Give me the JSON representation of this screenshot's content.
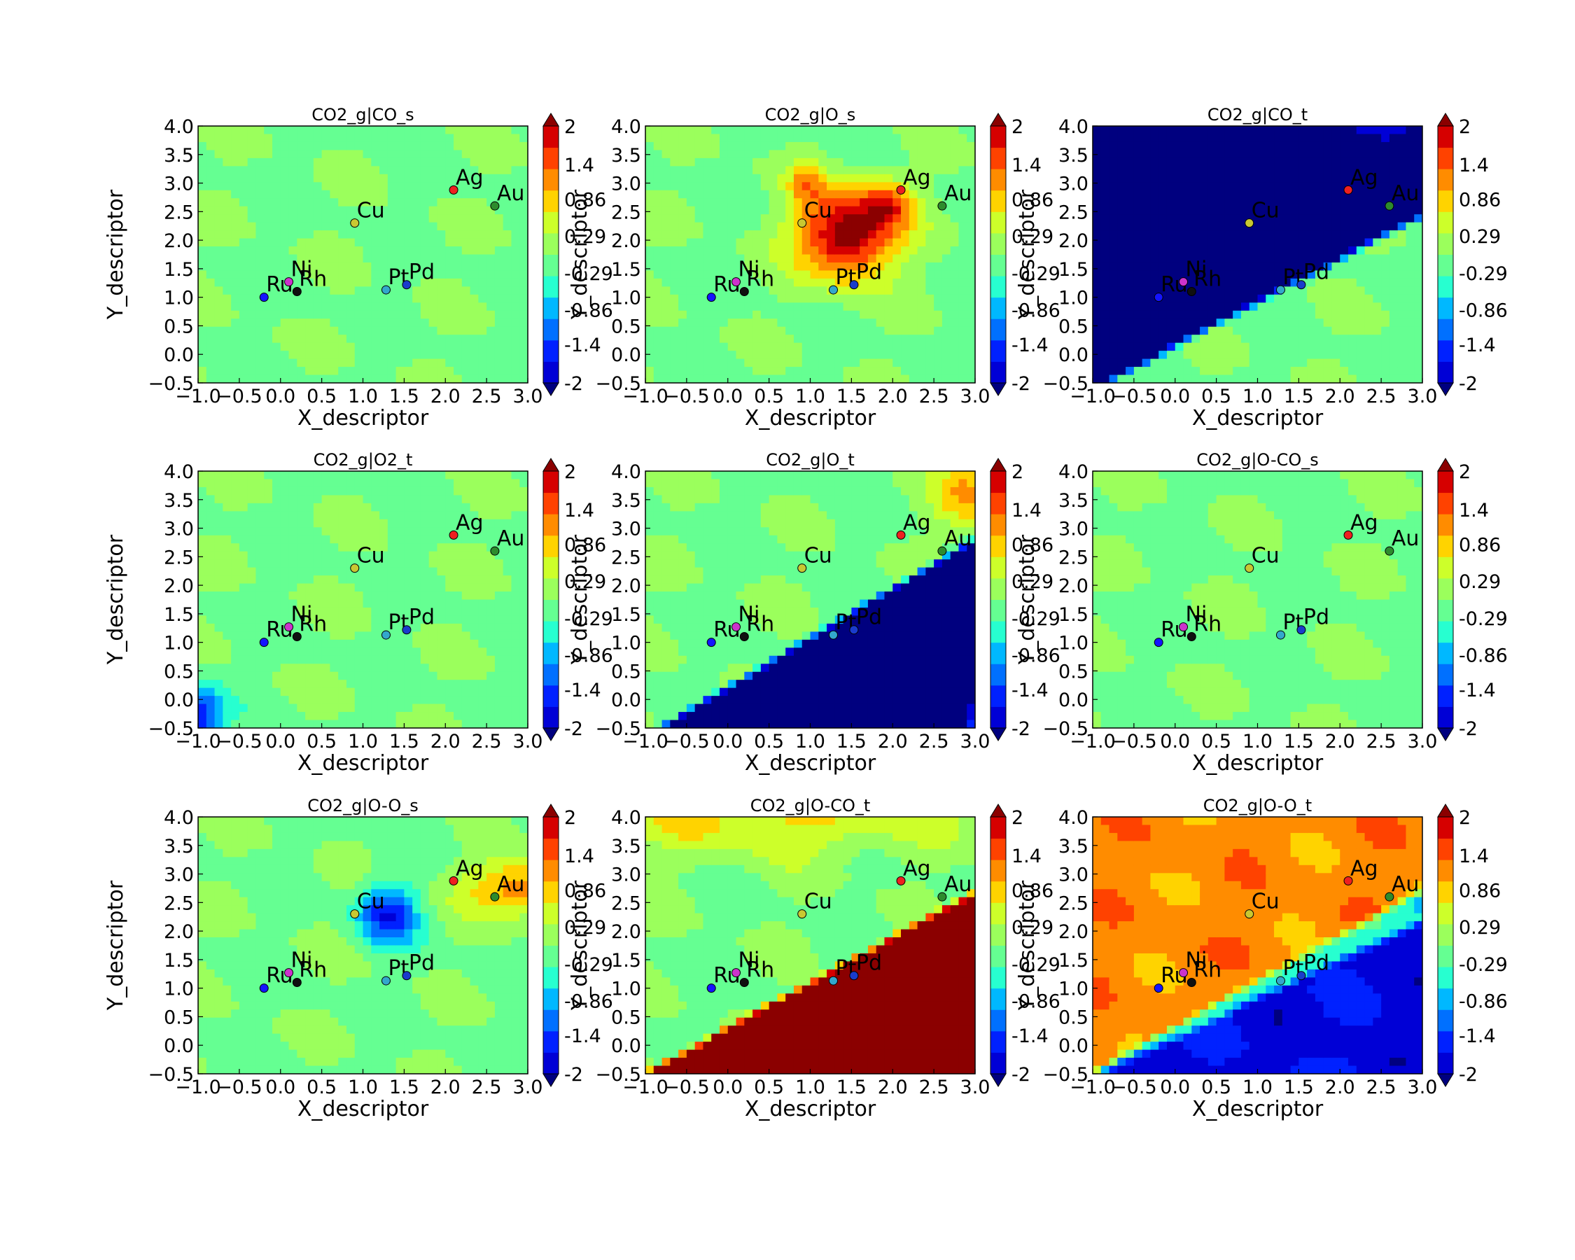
{
  "chart_data": {
    "type": "contour",
    "layout": {
      "rows": 3,
      "cols": 3
    },
    "xlabel": "X_descriptor",
    "ylabel": "Y_descriptor",
    "colorbar_label": "Y_descriptor",
    "xlim": [
      -1.0,
      3.0
    ],
    "ylim": [
      -0.5,
      4.0
    ],
    "xticks": [
      "−1.0",
      "−0.5",
      "0.0",
      "0.5",
      "1.0",
      "1.5",
      "2.0",
      "2.5",
      "3.0"
    ],
    "yticks": [
      "−0.5",
      "0.0",
      "0.5",
      "1.0",
      "1.5",
      "2.0",
      "2.5",
      "3.0",
      "3.5",
      "4.0"
    ],
    "colorbar": {
      "extend": "both",
      "range": [
        -2,
        2
      ],
      "ticks": [
        "-2",
        "-1.4",
        "-0.86",
        "-0.29",
        "0.29",
        "0.86",
        "1.4",
        "2"
      ],
      "levels": [
        -2.0,
        -1.714,
        -1.429,
        -1.143,
        -0.857,
        -0.571,
        -0.286,
        0.0,
        0.286,
        0.571,
        0.857,
        1.143,
        1.429,
        1.714,
        2.0
      ],
      "colors": [
        "#00007f",
        "#0000d6",
        "#0021ff",
        "#0070ff",
        "#00b8ff",
        "#27ffd0",
        "#65ff92",
        "#9bff5c",
        "#cdff2a",
        "#ffd300",
        "#ff8c00",
        "#ff4200",
        "#d60000",
        "#8b0000"
      ]
    },
    "metals": [
      {
        "name": "Ru",
        "x": -0.2,
        "y": 1.0,
        "color": "#1414ff"
      },
      {
        "name": "Ni",
        "x": 0.1,
        "y": 1.27,
        "color": "#cc33cc"
      },
      {
        "name": "Rh",
        "x": 0.2,
        "y": 1.1,
        "color": "#101010"
      },
      {
        "name": "Cu",
        "x": 0.9,
        "y": 2.3,
        "color": "#c8c832"
      },
      {
        "name": "Pt",
        "x": 1.28,
        "y": 1.13,
        "color": "#33a8cc"
      },
      {
        "name": "Pd",
        "x": 1.53,
        "y": 1.22,
        "color": "#1a3ccc"
      },
      {
        "name": "Ag",
        "x": 2.1,
        "y": 2.88,
        "color": "#ee2020"
      },
      {
        "name": "Au",
        "x": 2.6,
        "y": 2.6,
        "color": "#2d8b2d"
      }
    ],
    "panels": [
      {
        "title": "CO2_g|CO_s",
        "base": -0.05,
        "features": []
      },
      {
        "title": "CO2_g|O_s",
        "base": -0.05,
        "features": [
          {
            "kind": "gauss",
            "x": 1.45,
            "y": 2.1,
            "sx": 0.42,
            "sy": 0.55,
            "a": 2.1
          },
          {
            "kind": "gauss",
            "x": 1.95,
            "y": 2.65,
            "sx": 0.22,
            "sy": 0.28,
            "a": 1.0
          },
          {
            "kind": "gauss",
            "x": 0.95,
            "y": 3.0,
            "sx": 0.15,
            "sy": 0.3,
            "a": 0.7
          }
        ]
      },
      {
        "title": "CO2_g|CO_t",
        "base": -0.05,
        "features": [
          {
            "kind": "plane",
            "a": -0.55,
            "b": 0.72,
            "c": -0.12,
            "d": 0.14,
            "lo": -2.6,
            "hi": 0
          },
          {
            "kind": "gauss",
            "x": 2.6,
            "y": 4.1,
            "sx": 0.55,
            "sy": 0.35,
            "a": 1.1
          }
        ]
      },
      {
        "title": "CO2_g|O2_t",
        "base": -0.05,
        "features": [
          {
            "kind": "gauss",
            "x": -0.95,
            "y": -0.4,
            "sx": 0.18,
            "sy": 0.45,
            "a": -1.3
          }
        ]
      },
      {
        "title": "CO2_g|O_t",
        "base": -0.05,
        "features": [
          {
            "kind": "plane",
            "a": 0.65,
            "b": -0.75,
            "c": 0.14,
            "d": 0.14,
            "lo": -2.8,
            "hi": 0
          },
          {
            "kind": "gauss",
            "x": 2.95,
            "y": 3.6,
            "sx": 0.3,
            "sy": 0.45,
            "a": 0.95
          },
          {
            "kind": "gauss",
            "x": 3.0,
            "y": -0.4,
            "sx": 0.1,
            "sy": 0.5,
            "a": 1.8
          }
        ]
      },
      {
        "title": "CO2_g|O-CO_s",
        "base": -0.05,
        "features": []
      },
      {
        "title": "CO2_g|O-O_s",
        "base": -0.05,
        "features": [
          {
            "kind": "gauss",
            "x": 1.3,
            "y": 2.3,
            "sx": 0.25,
            "sy": 0.35,
            "a": -1.35
          },
          {
            "kind": "gauss",
            "x": 3.0,
            "y": 2.75,
            "sx": 0.55,
            "sy": 0.35,
            "a": 1.15
          }
        ]
      },
      {
        "title": "CO2_g|O-CO_t",
        "base": -0.05,
        "features": [
          {
            "kind": "plane",
            "a": 0.62,
            "b": -0.78,
            "c": 0.22,
            "d": 0.15,
            "lo": 0,
            "hi": 2.8
          },
          {
            "kind": "gauss",
            "x": 0.5,
            "y": 4.0,
            "sx": 1.6,
            "sy": 0.5,
            "a": 0.7
          }
        ]
      },
      {
        "title": "CO2_g|O-O_t",
        "base": -0.05,
        "features": [
          {
            "kind": "plane",
            "a": 0.62,
            "b": -0.78,
            "c": 0.25,
            "d": 0.12,
            "lo": -1.45,
            "hi": 0
          },
          {
            "kind": "plane",
            "a": -0.55,
            "b": 0.8,
            "c": -0.1,
            "d": 0.12,
            "lo": 0,
            "hi": 1.05
          }
        ]
      }
    ]
  }
}
